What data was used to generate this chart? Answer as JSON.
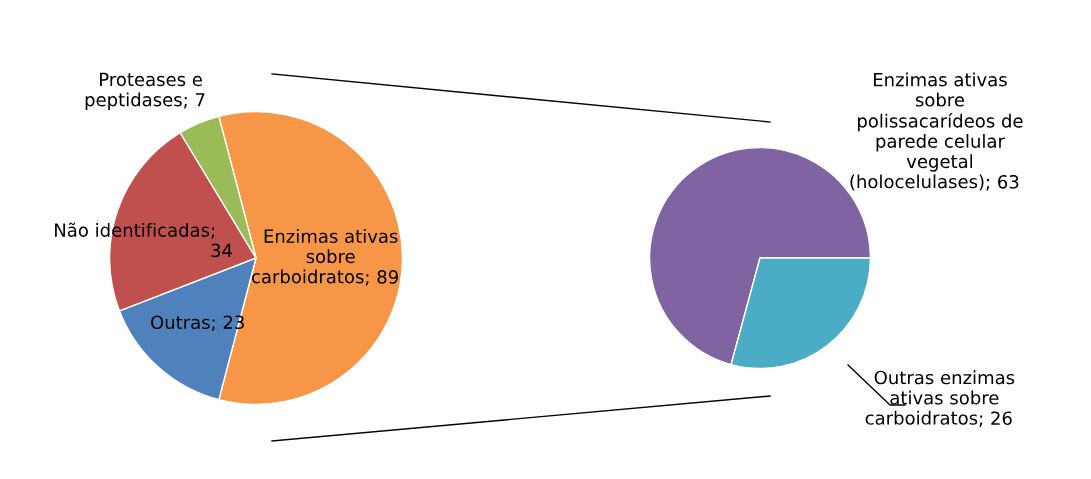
{
  "chart_data": [
    {
      "type": "pie",
      "categories": [
        "Enzimas ativas sobre carboidratos",
        "Outras",
        "Não identificadas",
        "Proteases e peptidases"
      ],
      "values": [
        89,
        23,
        34,
        7
      ],
      "value_labels": [
        "; 89",
        "; 23",
        "; 34",
        "; 7"
      ],
      "colors": [
        "#f79646",
        "#4f81bd",
        "#c0504d",
        "#9bbb59"
      ]
    },
    {
      "type": "pie",
      "categories": [
        "Enzimas ativas sobre polissacarídeos de parede celular vegetal (holocelulases)",
        "Outras enzimas ativas sobre carboidratos"
      ],
      "values": [
        63,
        26
      ],
      "value_labels": [
        "; 63",
        "; 26"
      ],
      "colors": [
        "#8064a2",
        "#4bacc6"
      ]
    }
  ]
}
